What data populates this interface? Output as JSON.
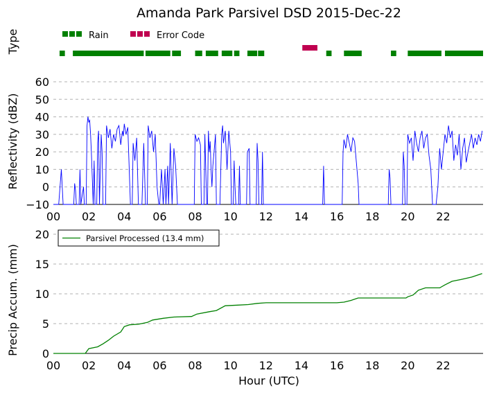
{
  "title": "Amanda Park Parsivel DSD 2015-Dec-22",
  "colors": {
    "rain": "#008000",
    "error": "#c00050",
    "refl": "#0000ff",
    "accum": "#008000",
    "grid": "#b0b0b0"
  },
  "chart_data": [
    {
      "type": "timeline",
      "ylabel": "Type",
      "legend": [
        {
          "name": "Rain",
          "color": "#008000"
        },
        {
          "name": "Error Code",
          "color": "#c00050"
        }
      ],
      "legend_position": "top-left",
      "rain_periods": [
        [
          0.35,
          0.65
        ],
        [
          1.1,
          5.1
        ],
        [
          5.2,
          6.6
        ],
        [
          6.7,
          7.2
        ],
        [
          8.0,
          8.4
        ],
        [
          8.6,
          9.3
        ],
        [
          9.5,
          10.1
        ],
        [
          10.2,
          10.5
        ],
        [
          10.95,
          11.5
        ],
        [
          11.55,
          11.9
        ],
        [
          15.4,
          15.7
        ],
        [
          16.4,
          17.4
        ],
        [
          19.05,
          19.35
        ],
        [
          20.0,
          21.9
        ],
        [
          22.1,
          24.4
        ]
      ],
      "error_periods": [
        [
          14.05,
          14.9
        ]
      ]
    },
    {
      "type": "line",
      "ylabel": "Reflectivity (dBZ)",
      "yticks": [
        -10,
        0,
        10,
        20,
        30,
        40,
        50,
        60
      ],
      "ylim": [
        -10,
        60
      ],
      "grid": true,
      "series": [
        {
          "values": [
            [
              0,
              -10
            ],
            [
              0.3,
              -10
            ],
            [
              0.45,
              10
            ],
            [
              0.55,
              -10
            ],
            [
              1.15,
              -10
            ],
            [
              1.2,
              2
            ],
            [
              1.25,
              -2
            ],
            [
              1.3,
              -10
            ],
            [
              1.45,
              -10
            ],
            [
              1.5,
              10
            ],
            [
              1.55,
              -10
            ],
            [
              1.7,
              0
            ],
            [
              1.75,
              -10
            ],
            [
              1.85,
              -10
            ],
            [
              1.9,
              35
            ],
            [
              1.95,
              40
            ],
            [
              2.0,
              37
            ],
            [
              2.05,
              38
            ],
            [
              2.1,
              30
            ],
            [
              2.15,
              18
            ],
            [
              2.25,
              -10
            ],
            [
              2.3,
              15
            ],
            [
              2.35,
              -10
            ],
            [
              2.45,
              -10
            ],
            [
              2.5,
              25
            ],
            [
              2.55,
              32
            ],
            [
              2.6,
              -10
            ],
            [
              2.7,
              30
            ],
            [
              2.75,
              20
            ],
            [
              2.8,
              -10
            ],
            [
              2.95,
              -10
            ],
            [
              3.0,
              35
            ],
            [
              3.1,
              28
            ],
            [
              3.2,
              33
            ],
            [
              3.3,
              22
            ],
            [
              3.4,
              30
            ],
            [
              3.5,
              26
            ],
            [
              3.6,
              33
            ],
            [
              3.7,
              35
            ],
            [
              3.8,
              24
            ],
            [
              3.9,
              32
            ],
            [
              3.95,
              29
            ],
            [
              4.0,
              36
            ],
            [
              4.1,
              30
            ],
            [
              4.2,
              34
            ],
            [
              4.3,
              5
            ],
            [
              4.35,
              -10
            ],
            [
              4.45,
              -10
            ],
            [
              4.5,
              25
            ],
            [
              4.6,
              15
            ],
            [
              4.7,
              28
            ],
            [
              4.8,
              -10
            ],
            [
              5.0,
              -10
            ],
            [
              5.1,
              25
            ],
            [
              5.2,
              -10
            ],
            [
              5.3,
              -10
            ],
            [
              5.35,
              35
            ],
            [
              5.45,
              28
            ],
            [
              5.55,
              32
            ],
            [
              5.65,
              20
            ],
            [
              5.75,
              30
            ],
            [
              5.85,
              0
            ],
            [
              5.95,
              -10
            ],
            [
              6.0,
              -10
            ],
            [
              6.1,
              10
            ],
            [
              6.2,
              -10
            ],
            [
              6.3,
              10
            ],
            [
              6.35,
              -10
            ],
            [
              6.45,
              12
            ],
            [
              6.5,
              -10
            ],
            [
              6.6,
              25
            ],
            [
              6.7,
              -10
            ],
            [
              6.8,
              22
            ],
            [
              6.9,
              12
            ],
            [
              7.0,
              -10
            ],
            [
              7.95,
              -10
            ],
            [
              8.0,
              30
            ],
            [
              8.1,
              26
            ],
            [
              8.2,
              28
            ],
            [
              8.3,
              24
            ],
            [
              8.35,
              -10
            ],
            [
              8.5,
              -10
            ],
            [
              8.55,
              30
            ],
            [
              8.65,
              -10
            ],
            [
              8.7,
              -10
            ],
            [
              8.75,
              32
            ],
            [
              8.8,
              20
            ],
            [
              8.85,
              26
            ],
            [
              8.9,
              10
            ],
            [
              8.95,
              0
            ],
            [
              9.0,
              12
            ],
            [
              9.05,
              18
            ],
            [
              9.1,
              24
            ],
            [
              9.15,
              30
            ],
            [
              9.2,
              -10
            ],
            [
              9.4,
              -10
            ],
            [
              9.5,
              30
            ],
            [
              9.55,
              35
            ],
            [
              9.6,
              25
            ],
            [
              9.7,
              32
            ],
            [
              9.8,
              10
            ],
            [
              9.9,
              32
            ],
            [
              10.0,
              20
            ],
            [
              10.05,
              -10
            ],
            [
              10.15,
              -10
            ],
            [
              10.2,
              15
            ],
            [
              10.25,
              0
            ],
            [
              10.3,
              -10
            ],
            [
              10.45,
              -10
            ],
            [
              10.5,
              12
            ],
            [
              10.55,
              -10
            ],
            [
              10.9,
              -10
            ],
            [
              10.95,
              20
            ],
            [
              11.05,
              22
            ],
            [
              11.1,
              -10
            ],
            [
              11.45,
              -10
            ],
            [
              11.5,
              25
            ],
            [
              11.55,
              15
            ],
            [
              11.6,
              -10
            ],
            [
              11.75,
              -10
            ],
            [
              11.8,
              20
            ],
            [
              11.85,
              -10
            ],
            [
              15.2,
              -10
            ],
            [
              15.25,
              12
            ],
            [
              15.3,
              -10
            ],
            [
              16.3,
              -10
            ],
            [
              16.35,
              20
            ],
            [
              16.4,
              27
            ],
            [
              16.5,
              22
            ],
            [
              16.6,
              30
            ],
            [
              16.7,
              25
            ],
            [
              16.8,
              20
            ],
            [
              16.9,
              28
            ],
            [
              17.0,
              26
            ],
            [
              17.1,
              14
            ],
            [
              17.2,
              2
            ],
            [
              17.25,
              -10
            ],
            [
              18.9,
              -10
            ],
            [
              18.95,
              10
            ],
            [
              19.0,
              5
            ],
            [
              19.05,
              -10
            ],
            [
              19.7,
              -10
            ],
            [
              19.75,
              20
            ],
            [
              19.8,
              12
            ],
            [
              19.85,
              -10
            ],
            [
              19.95,
              -10
            ],
            [
              20.0,
              30
            ],
            [
              20.1,
              25
            ],
            [
              20.2,
              28
            ],
            [
              20.3,
              15
            ],
            [
              20.4,
              32
            ],
            [
              20.5,
              25
            ],
            [
              20.6,
              20
            ],
            [
              20.7,
              28
            ],
            [
              20.8,
              32
            ],
            [
              20.9,
              22
            ],
            [
              21.0,
              28
            ],
            [
              21.1,
              30
            ],
            [
              21.2,
              18
            ],
            [
              21.3,
              10
            ],
            [
              21.4,
              -10
            ],
            [
              21.6,
              -10
            ],
            [
              21.7,
              0
            ],
            [
              21.8,
              22
            ],
            [
              21.9,
              10
            ],
            [
              22.0,
              20
            ],
            [
              22.1,
              30
            ],
            [
              22.2,
              25
            ],
            [
              22.3,
              35
            ],
            [
              22.4,
              28
            ],
            [
              22.5,
              32
            ],
            [
              22.6,
              15
            ],
            [
              22.7,
              24
            ],
            [
              22.8,
              18
            ],
            [
              22.9,
              30
            ],
            [
              23.0,
              10
            ],
            [
              23.1,
              22
            ],
            [
              23.2,
              28
            ],
            [
              23.3,
              14
            ],
            [
              23.4,
              20
            ],
            [
              23.5,
              25
            ],
            [
              23.6,
              30
            ],
            [
              23.7,
              22
            ],
            [
              23.8,
              28
            ],
            [
              23.9,
              24
            ],
            [
              24.0,
              30
            ],
            [
              24.1,
              26
            ],
            [
              24.2,
              32
            ]
          ]
        }
      ]
    },
    {
      "type": "line",
      "xlabel": "Hour (UTC)",
      "ylabel": "Precip Accum. (mm)",
      "yticks": [
        0,
        5,
        10,
        15,
        20
      ],
      "ylim": [
        0,
        20
      ],
      "xlim": [
        0,
        24.25
      ],
      "xticks": [
        "00",
        "02",
        "04",
        "06",
        "08",
        "10",
        "12",
        "14",
        "16",
        "18",
        "20",
        "22"
      ],
      "grid": true,
      "legend": [
        {
          "name": "Parsivel Processed (13.4 mm)",
          "color": "#008000"
        }
      ],
      "legend_position": "top-left",
      "series": [
        {
          "name": "Parsivel Processed (13.4 mm)",
          "values": [
            [
              0,
              0
            ],
            [
              1.8,
              0
            ],
            [
              2.0,
              0.8
            ],
            [
              2.5,
              1.1
            ],
            [
              2.8,
              1.6
            ],
            [
              3.1,
              2.2
            ],
            [
              3.4,
              2.9
            ],
            [
              3.8,
              3.6
            ],
            [
              4.0,
              4.5
            ],
            [
              4.3,
              4.8
            ],
            [
              4.8,
              4.9
            ],
            [
              5.3,
              5.2
            ],
            [
              5.6,
              5.6
            ],
            [
              6.2,
              5.9
            ],
            [
              6.8,
              6.1
            ],
            [
              7.8,
              6.2
            ],
            [
              8.1,
              6.6
            ],
            [
              8.8,
              7.0
            ],
            [
              9.2,
              7.2
            ],
            [
              9.7,
              8.0
            ],
            [
              10.4,
              8.1
            ],
            [
              11.0,
              8.2
            ],
            [
              11.5,
              8.4
            ],
            [
              12.0,
              8.5
            ],
            [
              13.0,
              8.5
            ],
            [
              14.0,
              8.5
            ],
            [
              15.0,
              8.5
            ],
            [
              16.0,
              8.5
            ],
            [
              16.4,
              8.6
            ],
            [
              16.8,
              8.9
            ],
            [
              17.2,
              9.3
            ],
            [
              18.0,
              9.3
            ],
            [
              19.0,
              9.3
            ],
            [
              19.9,
              9.3
            ],
            [
              20.0,
              9.5
            ],
            [
              20.3,
              9.8
            ],
            [
              20.6,
              10.6
            ],
            [
              21.0,
              11.0
            ],
            [
              21.8,
              11.0
            ],
            [
              22.1,
              11.5
            ],
            [
              22.5,
              12.1
            ],
            [
              23.0,
              12.4
            ],
            [
              23.6,
              12.8
            ],
            [
              24.2,
              13.4
            ]
          ]
        }
      ]
    }
  ]
}
